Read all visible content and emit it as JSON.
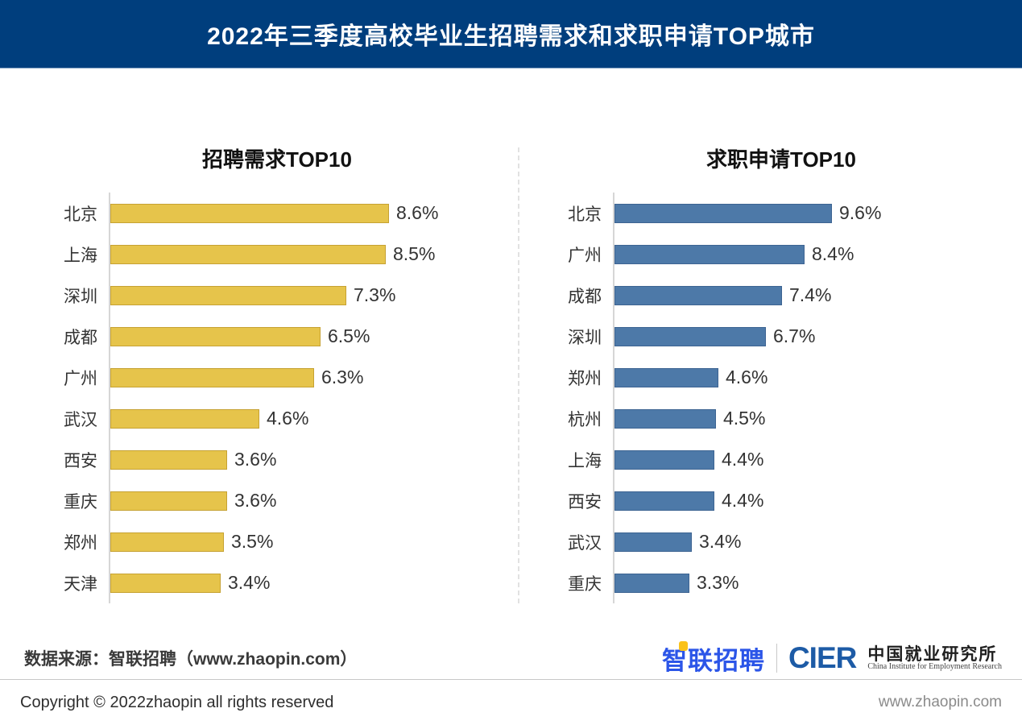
{
  "header": {
    "title": "2022年三季度高校毕业生招聘需求和求职申请TOP城市"
  },
  "chart_data": [
    {
      "type": "bar",
      "orientation": "horizontal",
      "title": "招聘需求TOP10",
      "categories": [
        "北京",
        "上海",
        "深圳",
        "成都",
        "广州",
        "武汉",
        "西安",
        "重庆",
        "郑州",
        "天津"
      ],
      "values": [
        8.6,
        8.5,
        7.3,
        6.5,
        6.3,
        4.6,
        3.6,
        3.6,
        3.5,
        3.4
      ],
      "display_values": [
        "8.6%",
        "8.5%",
        "7.3%",
        "6.5%",
        "6.3%",
        "4.6%",
        "3.6%",
        "3.6%",
        "3.5%",
        "3.4%"
      ],
      "unit": "%",
      "xlim": [
        0,
        10.7
      ],
      "grid": false,
      "legend": "none",
      "bar_color": "#e6c44b",
      "bar_border_color": "#c6a233"
    },
    {
      "type": "bar",
      "orientation": "horizontal",
      "title": "求职申请TOP10",
      "categories": [
        "北京",
        "广州",
        "成都",
        "深圳",
        "郑州",
        "杭州",
        "上海",
        "西安",
        "武汉",
        "重庆"
      ],
      "values": [
        9.6,
        8.4,
        7.4,
        6.7,
        4.6,
        4.5,
        4.4,
        4.4,
        3.4,
        3.3
      ],
      "display_values": [
        "9.6%",
        "8.4%",
        "7.4%",
        "6.7%",
        "4.6%",
        "4.5%",
        "4.4%",
        "4.4%",
        "3.4%",
        "3.3%"
      ],
      "unit": "%",
      "xlim": [
        0,
        15.3
      ],
      "grid": false,
      "legend": "none",
      "bar_color": "#4d79a8",
      "bar_border_color": "#3d6492"
    }
  ],
  "source": {
    "text": "数据来源：智联招聘（www.zhaopin.com）"
  },
  "logos": {
    "zhaopin": "智联招聘",
    "cier_acronym": "CIER",
    "cier_cn": "中国就业研究所",
    "cier_en": "China Institute for Employment Research"
  },
  "footer": {
    "copyright": "Copyright © 2022zhaopin all rights reserved",
    "website": "www.zhaopin.com"
  },
  "colors": {
    "header_bg": "#003e7d",
    "demand_bar": "#e6c44b",
    "application_bar": "#4d79a8",
    "axis_line": "#d6d6d6",
    "zhaopin_blue": "#2b55e8",
    "zhaopin_yellow": "#fac21b",
    "cier_blue": "#1d5ba6"
  }
}
